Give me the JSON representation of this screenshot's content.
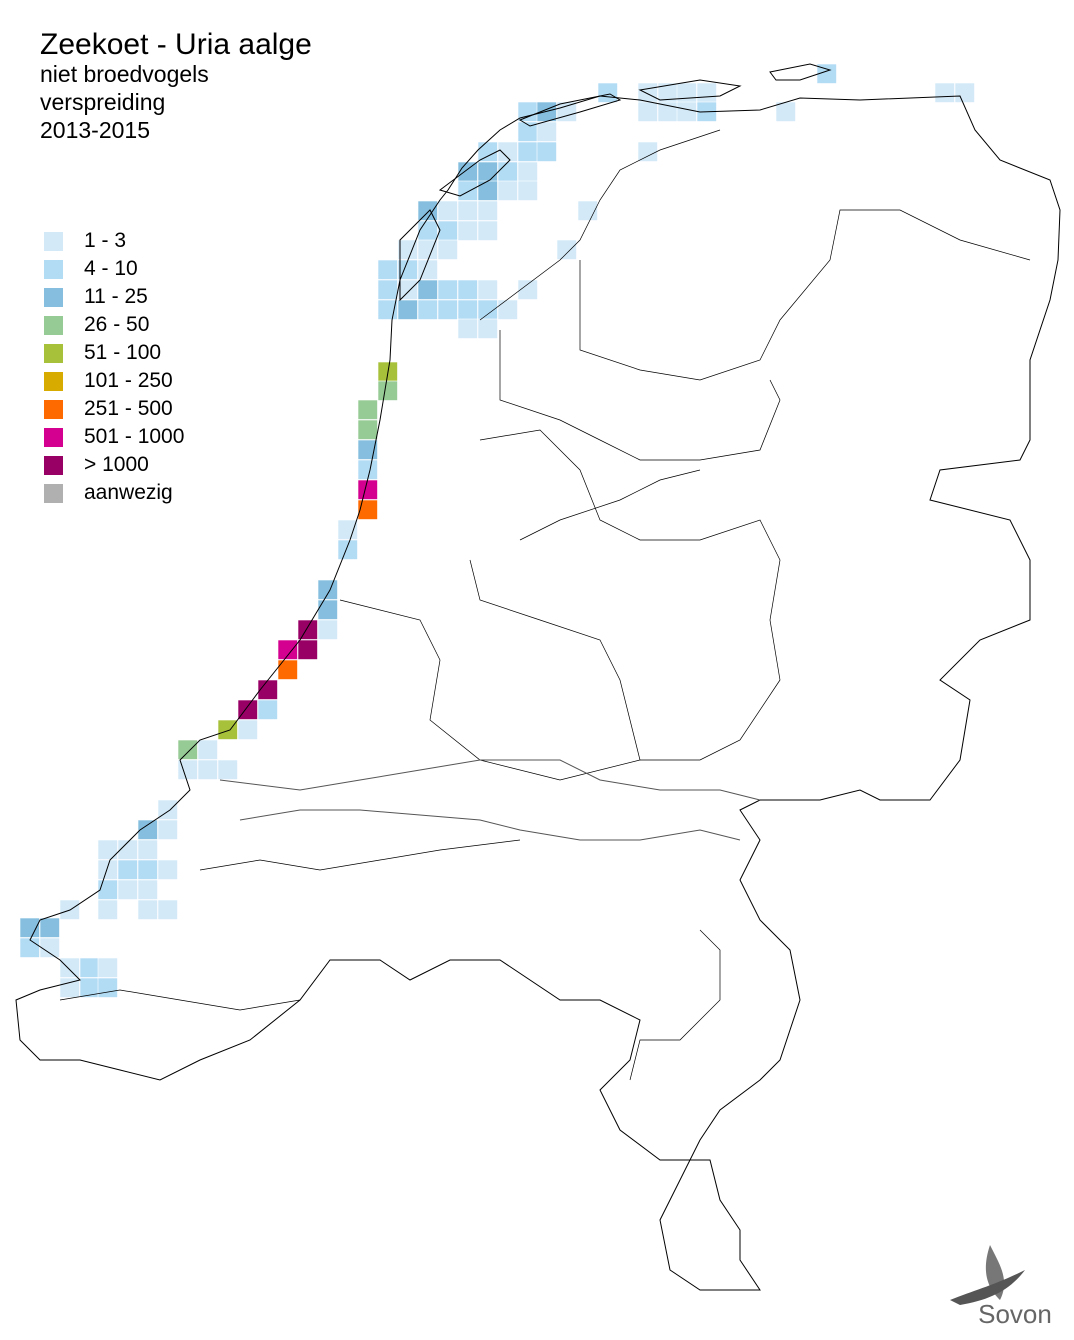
{
  "title": "Zeekoet - Uria aalge",
  "subtitle": [
    "niet broedvogels",
    "verspreiding",
    "2013-2015"
  ],
  "legend": [
    {
      "label": "1 - 3",
      "color": "#d3e9f7"
    },
    {
      "label": "4 - 10",
      "color": "#b2dcf4"
    },
    {
      "label": "11 - 25",
      "color": "#86bedf"
    },
    {
      "label": "26 - 50",
      "color": "#97cb95"
    },
    {
      "label": "51 - 100",
      "color": "#a7c13a"
    },
    {
      "label": "101 - 250",
      "color": "#d8ab00"
    },
    {
      "label": "251 - 500",
      "color": "#ff6a00"
    },
    {
      "label": "501 - 1000",
      "color": "#d4008f"
    },
    {
      "label": "> 1000",
      "color": "#990066"
    },
    {
      "label": "aanwezig",
      "color": "#b0b0b0"
    }
  ],
  "logo": "Sovon"
}
